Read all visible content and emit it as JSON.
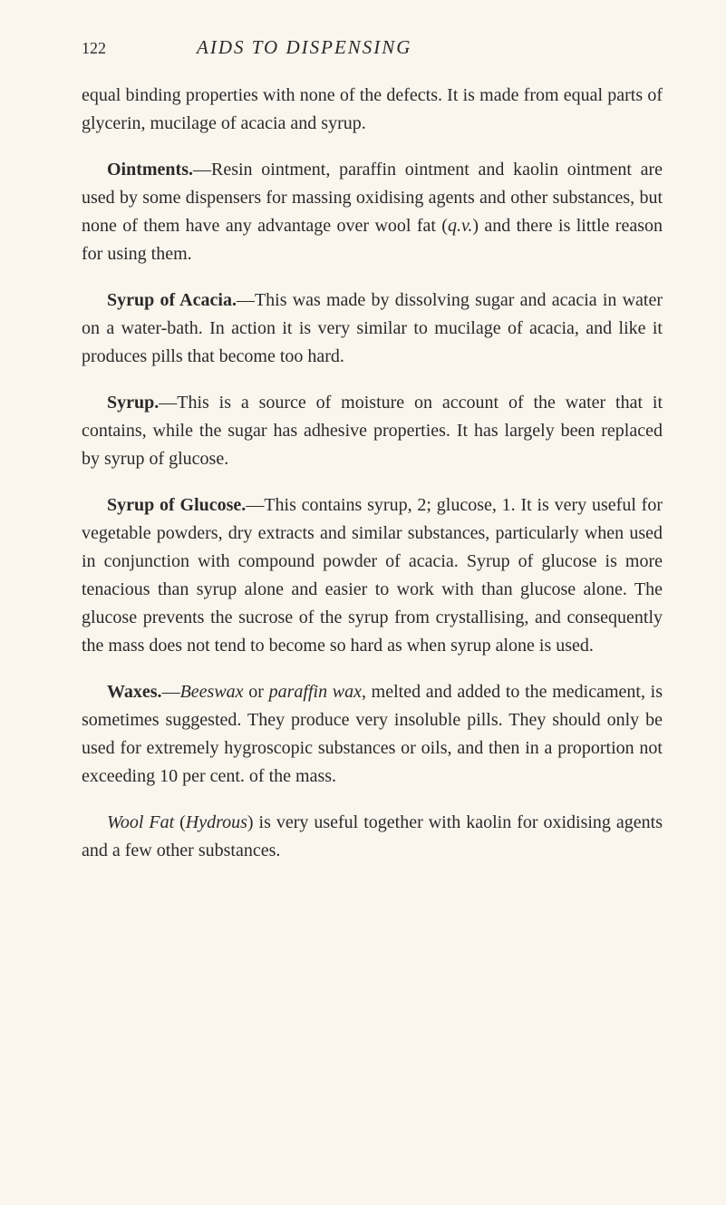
{
  "pageNumber": "122",
  "chapterTitle": "AIDS TO DISPENSING",
  "paragraphs": {
    "p1": "equal binding properties with none of the defects. It is made from equal parts of glycerin, mucilage of acacia and syrup.",
    "p2_label": "Ointments.",
    "p2_text": "—Resin ointment, paraffin ointment and kaolin ointment are used by some dispensers for massing oxidising agents and other substances, but none of them have any advantage over wool fat (",
    "p2_qv": "q.v.",
    "p2_end": ") and there is little reason for using them.",
    "p3_label": "Syrup of Acacia.",
    "p3_text": "—This was made by dissolving sugar and acacia in water on a water-bath. In action it is very similar to mucilage of acacia, and like it produces pills that become too hard.",
    "p4_label": "Syrup.",
    "p4_text": "—This is a source of moisture on account of the water that it contains, while the sugar has adhesive properties. It has largely been replaced by syrup of glucose.",
    "p5_label": "Syrup of Glucose.",
    "p5_text": "—This contains syrup, 2; glucose, 1. It is very useful for vegetable powders, dry extracts and similar substances, particularly when used in conjunction with compound powder of acacia. Syrup of glucose is more tenacious than syrup alone and easier to work with than glucose alone. The glucose prevents the sucrose of the syrup from crystallising, and consequently the mass does not tend to become so hard as when syrup alone is used.",
    "p6_label": "Waxes.",
    "p6_dash": "—",
    "p6_beeswax": "Beeswax",
    "p6_or": " or ",
    "p6_paraffin": "paraffin wax",
    "p6_text": ", melted and added to the medicament, is sometimes suggested. They produce very insoluble pills. They should only be used for extremely hygroscopic substances or oils, and then in a proportion not exceeding 10 per cent. of the mass.",
    "p7_italic": "Wool Fat ",
    "p7_paren": "(",
    "p7_hydrous": "Hydrous",
    "p7_text": ") is very useful together with kaolin for oxidising agents and a few other substances."
  },
  "colors": {
    "background": "#faf5ed",
    "text": "#2a2a2a"
  },
  "typography": {
    "bodyFontSize": 20,
    "headerFontSize": 21,
    "pageNumFontSize": 18,
    "lineHeight": 1.55
  }
}
